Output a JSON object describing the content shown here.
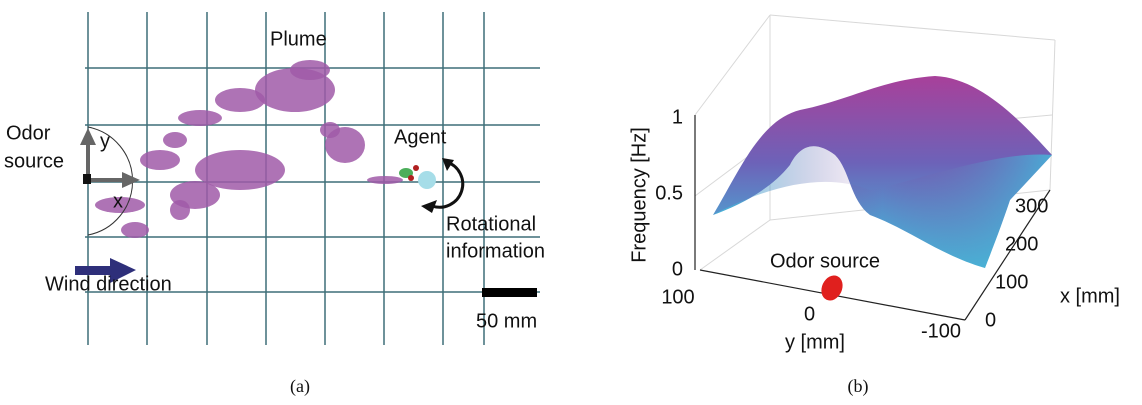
{
  "panel_a": {
    "plume_label": "Plume",
    "source_label": [
      "Odor",
      "source"
    ],
    "y_axis": "y",
    "x_axis": "x",
    "agent_label": "Agent",
    "rotation_label": [
      "Rotational",
      "information"
    ],
    "wind_label": "Wind direction",
    "scale_label": "50 mm",
    "caption": "(a)"
  },
  "panel_b": {
    "z_label": "Frequency [Hz]",
    "x_label": "x [mm]",
    "y_label": "y [mm]",
    "zticks": [
      0,
      0.5,
      1
    ],
    "yticks": [
      100,
      0,
      -100
    ],
    "xticks": [
      0,
      100,
      200,
      300
    ],
    "source_label": "Odor source",
    "caption": "(b)"
  }
}
